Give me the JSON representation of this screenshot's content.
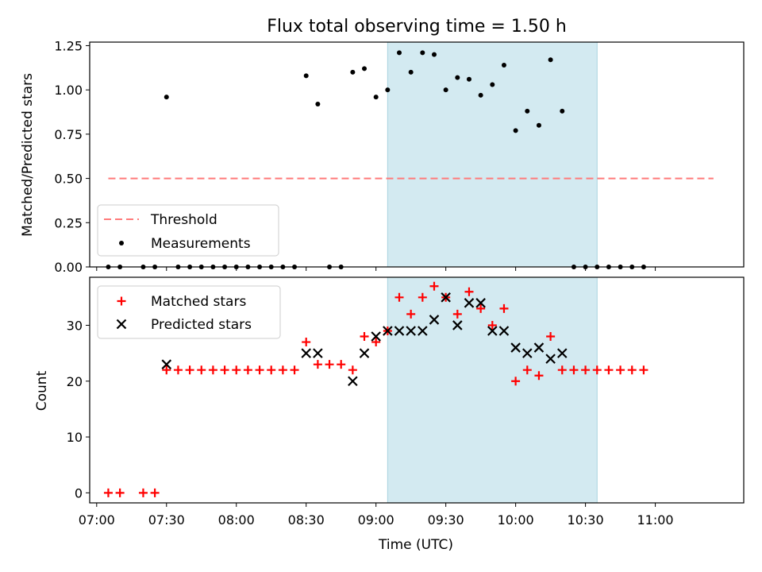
{
  "chart_data": {
    "type": "scatter",
    "title": "Flux total observing time = 1.50 h",
    "xlabel": "Time (UTC)",
    "x_ticks": [
      "07:00",
      "07:30",
      "08:00",
      "08:30",
      "09:00",
      "09:30",
      "10:00",
      "10:30",
      "11:00"
    ],
    "x_range": [
      "06:57",
      "11:38"
    ],
    "shaded_interval": [
      "09:05",
      "10:35"
    ],
    "shade_color": "#d3eaf1",
    "top_panel": {
      "ylabel": "Matched/Predicted stars",
      "ylim": [
        0,
        1.27
      ],
      "y_ticks": [
        "0.00",
        "0.25",
        "0.50",
        "0.75",
        "1.00",
        "1.25"
      ],
      "threshold": {
        "name": "Threshold",
        "value": 0.5,
        "x_start": "07:05",
        "x_end": "11:25",
        "color": "#ff7b7b"
      },
      "measurements": {
        "name": "Measurements",
        "color": "#000000",
        "points": [
          {
            "x": "07:05",
            "y": 0
          },
          {
            "x": "07:10",
            "y": 0
          },
          {
            "x": "07:20",
            "y": 0
          },
          {
            "x": "07:25",
            "y": 0
          },
          {
            "x": "07:30",
            "y": 0.96
          },
          {
            "x": "07:35",
            "y": 0
          },
          {
            "x": "07:40",
            "y": 0
          },
          {
            "x": "07:45",
            "y": 0
          },
          {
            "x": "07:50",
            "y": 0
          },
          {
            "x": "07:55",
            "y": 0
          },
          {
            "x": "08:00",
            "y": 0
          },
          {
            "x": "08:05",
            "y": 0
          },
          {
            "x": "08:10",
            "y": 0
          },
          {
            "x": "08:15",
            "y": 0
          },
          {
            "x": "08:20",
            "y": 0
          },
          {
            "x": "08:25",
            "y": 0
          },
          {
            "x": "08:30",
            "y": 1.08
          },
          {
            "x": "08:35",
            "y": 0.92
          },
          {
            "x": "08:40",
            "y": 0
          },
          {
            "x": "08:45",
            "y": 0
          },
          {
            "x": "08:50",
            "y": 1.1
          },
          {
            "x": "08:55",
            "y": 1.12
          },
          {
            "x": "09:00",
            "y": 0.96
          },
          {
            "x": "09:05",
            "y": 1.0
          },
          {
            "x": "09:10",
            "y": 1.21
          },
          {
            "x": "09:15",
            "y": 1.1
          },
          {
            "x": "09:20",
            "y": 1.21
          },
          {
            "x": "09:25",
            "y": 1.2
          },
          {
            "x": "09:30",
            "y": 1.0
          },
          {
            "x": "09:35",
            "y": 1.07
          },
          {
            "x": "09:40",
            "y": 1.06
          },
          {
            "x": "09:45",
            "y": 0.97
          },
          {
            "x": "09:50",
            "y": 1.03
          },
          {
            "x": "09:55",
            "y": 1.14
          },
          {
            "x": "10:00",
            "y": 0.77
          },
          {
            "x": "10:05",
            "y": 0.88
          },
          {
            "x": "10:10",
            "y": 0.8
          },
          {
            "x": "10:15",
            "y": 1.17
          },
          {
            "x": "10:20",
            "y": 0.88
          },
          {
            "x": "10:25",
            "y": 0
          },
          {
            "x": "10:30",
            "y": 0
          },
          {
            "x": "10:35",
            "y": 0
          },
          {
            "x": "10:40",
            "y": 0
          },
          {
            "x": "10:45",
            "y": 0
          },
          {
            "x": "10:50",
            "y": 0
          },
          {
            "x": "10:55",
            "y": 0
          }
        ]
      }
    },
    "bottom_panel": {
      "ylabel": "Count",
      "ylim": [
        -1.8,
        38.6
      ],
      "y_ticks": [
        "0",
        "10",
        "20",
        "30"
      ],
      "series": [
        {
          "name": "Matched stars",
          "marker": "plus",
          "color": "#ff0000",
          "points": [
            {
              "x": "07:05",
              "y": 0
            },
            {
              "x": "07:10",
              "y": 0
            },
            {
              "x": "07:20",
              "y": 0
            },
            {
              "x": "07:25",
              "y": 0
            },
            {
              "x": "07:30",
              "y": 22
            },
            {
              "x": "07:35",
              "y": 22
            },
            {
              "x": "07:40",
              "y": 22
            },
            {
              "x": "07:45",
              "y": 22
            },
            {
              "x": "07:50",
              "y": 22
            },
            {
              "x": "07:55",
              "y": 22
            },
            {
              "x": "08:00",
              "y": 22
            },
            {
              "x": "08:05",
              "y": 22
            },
            {
              "x": "08:10",
              "y": 22
            },
            {
              "x": "08:15",
              "y": 22
            },
            {
              "x": "08:20",
              "y": 22
            },
            {
              "x": "08:25",
              "y": 22
            },
            {
              "x": "08:30",
              "y": 27
            },
            {
              "x": "08:35",
              "y": 23
            },
            {
              "x": "08:40",
              "y": 23
            },
            {
              "x": "08:45",
              "y": 23
            },
            {
              "x": "08:50",
              "y": 22
            },
            {
              "x": "08:55",
              "y": 28
            },
            {
              "x": "09:00",
              "y": 27
            },
            {
              "x": "09:05",
              "y": 29
            },
            {
              "x": "09:10",
              "y": 35
            },
            {
              "x": "09:15",
              "y": 32
            },
            {
              "x": "09:20",
              "y": 35
            },
            {
              "x": "09:25",
              "y": 37
            },
            {
              "x": "09:30",
              "y": 35
            },
            {
              "x": "09:35",
              "y": 32
            },
            {
              "x": "09:40",
              "y": 36
            },
            {
              "x": "09:45",
              "y": 33
            },
            {
              "x": "09:50",
              "y": 30
            },
            {
              "x": "09:55",
              "y": 33
            },
            {
              "x": "10:00",
              "y": 20
            },
            {
              "x": "10:05",
              "y": 22
            },
            {
              "x": "10:10",
              "y": 21
            },
            {
              "x": "10:15",
              "y": 28
            },
            {
              "x": "10:20",
              "y": 22
            },
            {
              "x": "10:25",
              "y": 22
            },
            {
              "x": "10:30",
              "y": 22
            },
            {
              "x": "10:35",
              "y": 22
            },
            {
              "x": "10:40",
              "y": 22
            },
            {
              "x": "10:45",
              "y": 22
            },
            {
              "x": "10:50",
              "y": 22
            },
            {
              "x": "10:55",
              "y": 22
            }
          ]
        },
        {
          "name": "Predicted stars",
          "marker": "x",
          "color": "#000000",
          "points": [
            {
              "x": "07:30",
              "y": 23
            },
            {
              "x": "08:30",
              "y": 25
            },
            {
              "x": "08:35",
              "y": 25
            },
            {
              "x": "08:50",
              "y": 20
            },
            {
              "x": "08:55",
              "y": 25
            },
            {
              "x": "09:00",
              "y": 28
            },
            {
              "x": "09:05",
              "y": 29
            },
            {
              "x": "09:10",
              "y": 29
            },
            {
              "x": "09:15",
              "y": 29
            },
            {
              "x": "09:20",
              "y": 29
            },
            {
              "x": "09:25",
              "y": 31
            },
            {
              "x": "09:30",
              "y": 35
            },
            {
              "x": "09:35",
              "y": 30
            },
            {
              "x": "09:40",
              "y": 34
            },
            {
              "x": "09:45",
              "y": 34
            },
            {
              "x": "09:50",
              "y": 29
            },
            {
              "x": "09:55",
              "y": 29
            },
            {
              "x": "10:00",
              "y": 26
            },
            {
              "x": "10:05",
              "y": 25
            },
            {
              "x": "10:10",
              "y": 26
            },
            {
              "x": "10:15",
              "y": 24
            },
            {
              "x": "10:20",
              "y": 25
            }
          ]
        }
      ]
    }
  }
}
